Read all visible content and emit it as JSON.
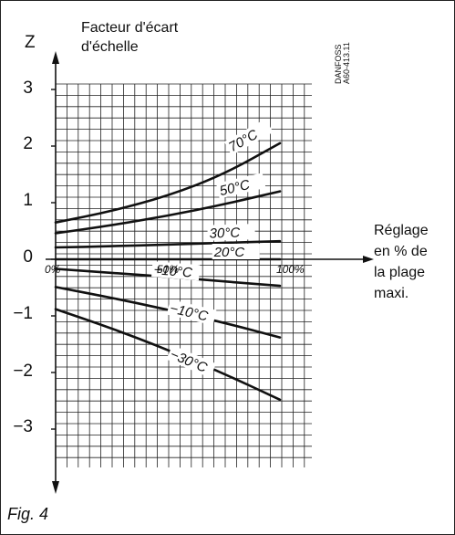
{
  "figure": {
    "caption": "Fig. 4",
    "source_mark": [
      "DANFOSS",
      "A60-413.11"
    ]
  },
  "chart_data": {
    "type": "line",
    "title": "",
    "ylabel": "Facteur d'écart d'échelle",
    "ylabel_lines": [
      "Facteur  d'écart",
      "d'échelle"
    ],
    "yaxis_symbol": "Z",
    "xlabel": "Réglage en % de la plage maxi.",
    "xlabel_lines": [
      "Réglage",
      "en % de",
      "la plage",
      "maxi."
    ],
    "ylim": [
      -3.5,
      3.1
    ],
    "xlim": [
      0,
      100
    ],
    "yticks": [
      3,
      2,
      1,
      0,
      -1,
      -2,
      -3
    ],
    "ytick_labels": [
      "3",
      "2",
      "1",
      "0",
      "−1",
      "−2",
      "−3"
    ],
    "xticks": [
      0,
      50,
      100
    ],
    "xtick_labels": [
      "0%",
      "50%",
      "100%"
    ],
    "grid": true,
    "x": [
      0,
      25,
      50,
      75,
      100
    ],
    "series": [
      {
        "name": "70°C",
        "label": "70°C",
        "values": [
          0.65,
          0.85,
          1.12,
          1.5,
          2.05
        ]
      },
      {
        "name": "50°C",
        "label": "50°C",
        "values": [
          0.46,
          0.6,
          0.77,
          0.97,
          1.2
        ]
      },
      {
        "name": "30°C",
        "label": "30°C",
        "values": [
          0.21,
          0.23,
          0.26,
          0.29,
          0.32
        ]
      },
      {
        "name": "20°C",
        "label": "20°C",
        "values": [
          0.0,
          0.0,
          0.0,
          0.0,
          0.0
        ]
      },
      {
        "name": "+10°C",
        "label": "+10°C",
        "values": [
          -0.17,
          -0.24,
          -0.31,
          -0.39,
          -0.47
        ]
      },
      {
        "name": "-10°C",
        "label": "−10°C",
        "values": [
          -0.49,
          -0.68,
          -0.89,
          -1.12,
          -1.38
        ]
      },
      {
        "name": "-30°C",
        "label": "−30°C",
        "values": [
          -0.88,
          -1.22,
          -1.6,
          -2.02,
          -2.48
        ]
      }
    ]
  }
}
